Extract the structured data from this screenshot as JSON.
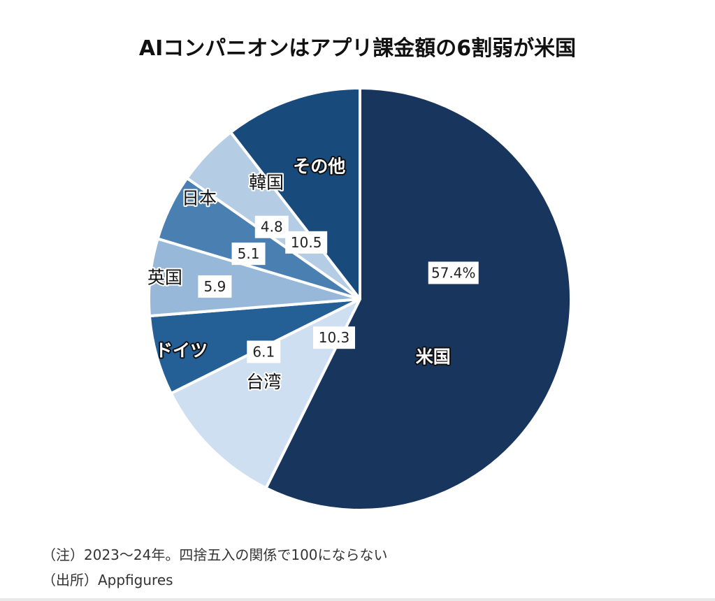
{
  "chart_data": {
    "type": "pie",
    "title": "AIコンパニオンはアプリ課金額の6割弱が米国",
    "start": "12 o'clock",
    "direction": "clockwise",
    "unit": "%",
    "slices": [
      {
        "name": "米国",
        "value": 57.4,
        "value_label": "57.4%",
        "color": "#18355e",
        "label_color": "#ffffff"
      },
      {
        "name": "台湾",
        "value": 10.3,
        "value_label": "10.3",
        "color": "#cddff0",
        "label_color": "#111111"
      },
      {
        "name": "ドイツ",
        "value": 6.1,
        "value_label": "6.1",
        "color": "#245f95",
        "label_color": "#ffffff"
      },
      {
        "name": "英国",
        "value": 5.9,
        "value_label": "5.9",
        "color": "#97b8d8",
        "label_color": "#111111"
      },
      {
        "name": "日本",
        "value": 5.1,
        "value_label": "5.1",
        "color": "#4a7fb2",
        "label_color": "#111111"
      },
      {
        "name": "韓国",
        "value": 4.8,
        "value_label": "4.8",
        "color": "#b4cde5",
        "label_color": "#111111"
      },
      {
        "name": "その他",
        "value": 10.5,
        "value_label": "10.5",
        "color": "#194a7c",
        "label_color": "#ffffff"
      }
    ]
  },
  "notes": {
    "note": "（注）2023～24年。四捨五入の関係で100にならない",
    "source": "（出所）Appfigures"
  }
}
